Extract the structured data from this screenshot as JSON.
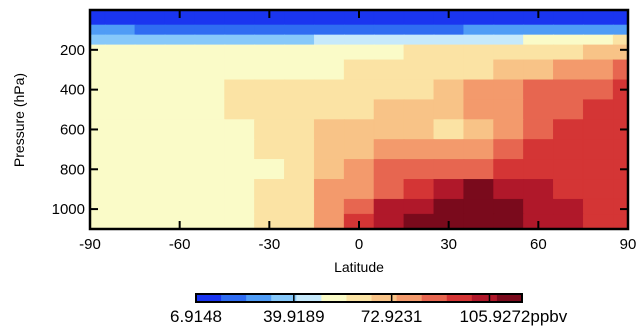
{
  "chart_data": {
    "type": "heatmap",
    "title": "",
    "xlabel": "Latitude",
    "ylabel": "Pressure (hPa)",
    "xlim": [
      -90,
      90
    ],
    "ylim": [
      1100,
      0
    ],
    "x_ticks": [
      -90,
      -60,
      -30,
      0,
      30,
      60,
      90
    ],
    "x_tick_labels": [
      "-90",
      "-60",
      "-30",
      "0",
      "30",
      "60",
      "90"
    ],
    "y_ticks": [
      200,
      400,
      600,
      800,
      1000
    ],
    "y_tick_labels": [
      "200",
      "400",
      "600",
      "800",
      "1000"
    ],
    "colorbar": {
      "tick_values": [
        6.9148,
        39.9189,
        72.9231,
        105.9272
      ],
      "tick_labels": [
        "6.9148",
        "39.9189",
        "72.9231",
        "105.9272ppbv"
      ],
      "vmin": 6.9148,
      "vmax": 116.9,
      "colors": [
        "#1a35f0",
        "#2f6cf2",
        "#4f9cf6",
        "#86c8fa",
        "#c6e9fb",
        "#fafbc8",
        "#fbe3a4",
        "#f8c387",
        "#f39a6c",
        "#e76650",
        "#d43535",
        "#b0182a",
        "#7a0a1c"
      ]
    },
    "lat": [
      -90,
      -80,
      -70,
      -60,
      -50,
      -40,
      -30,
      -20,
      -10,
      0,
      10,
      20,
      30,
      40,
      50,
      60,
      70,
      80,
      90
    ],
    "pressure": [
      50,
      100,
      150,
      200,
      300,
      400,
      500,
      600,
      700,
      800,
      900,
      1000,
      1050
    ],
    "values": [
      [
        10,
        10,
        10,
        10,
        10,
        10,
        10,
        10,
        10,
        10,
        10,
        10,
        10,
        10,
        10,
        10,
        10,
        10,
        10
      ],
      [
        25,
        25,
        22,
        20,
        18,
        16,
        16,
        18,
        20,
        22,
        22,
        22,
        23,
        24,
        25,
        26,
        28,
        30,
        32
      ],
      [
        40,
        40,
        40,
        38,
        35,
        33,
        33,
        38,
        42,
        45,
        45,
        45,
        45,
        46,
        48,
        50,
        52,
        55,
        58
      ],
      [
        50,
        52,
        52,
        52,
        52,
        52,
        52,
        52,
        53,
        56,
        57,
        58,
        60,
        62,
        63,
        64,
        66,
        70,
        72
      ],
      [
        52,
        52,
        52,
        52,
        52,
        52,
        52,
        55,
        57,
        60,
        62,
        62,
        62,
        64,
        68,
        72,
        75,
        80,
        84
      ],
      [
        52,
        52,
        52,
        52,
        52,
        58,
        60,
        60,
        60,
        62,
        62,
        66,
        70,
        75,
        80,
        85,
        88,
        90,
        92
      ],
      [
        52,
        52,
        52,
        52,
        52,
        58,
        60,
        60,
        63,
        65,
        68,
        70,
        70,
        78,
        82,
        88,
        90,
        92,
        94
      ],
      [
        52,
        52,
        52,
        52,
        52,
        52,
        58,
        60,
        70,
        70,
        72,
        70,
        66,
        72,
        80,
        90,
        95,
        95,
        96
      ],
      [
        52,
        52,
        52,
        52,
        52,
        52,
        58,
        62,
        72,
        72,
        80,
        80,
        80,
        82,
        85,
        92,
        96,
        96,
        96
      ],
      [
        52,
        52,
        52,
        52,
        52,
        52,
        56,
        62,
        72,
        75,
        85,
        85,
        90,
        90,
        92,
        95,
        96,
        96,
        96
      ],
      [
        52,
        52,
        52,
        52,
        52,
        52,
        58,
        62,
        75,
        80,
        88,
        98,
        104,
        110,
        108,
        102,
        98,
        96,
        96
      ],
      [
        52,
        52,
        52,
        52,
        52,
        52,
        60,
        65,
        80,
        90,
        100,
        108,
        112,
        114,
        110,
        104,
        100,
        98,
        96
      ],
      [
        52,
        52,
        52,
        52,
        52,
        52,
        60,
        65,
        82,
        96,
        104,
        112,
        116,
        116,
        112,
        106,
        100,
        98,
        96
      ]
    ]
  }
}
